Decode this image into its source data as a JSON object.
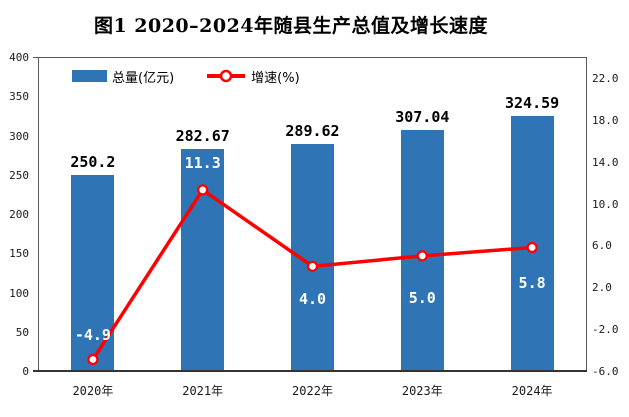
{
  "title": "图1  2020–2024年随县生产总值及增长速度",
  "legend": {
    "bar_label": "总量(亿元)",
    "line_label": "增速(%)"
  },
  "colors": {
    "bar": "#2F75B5",
    "line": "#FF0000",
    "marker_fill": "#FFFFFF",
    "axis_line": "#333333",
    "frame": "#595959"
  },
  "chart_data": {
    "type": "bar+line",
    "title": "图1  2020–2024年随县生产总值及增长速度",
    "categories": [
      "2020年",
      "2021年",
      "2022年",
      "2023年",
      "2024年"
    ],
    "series": [
      {
        "name": "总量(亿元)",
        "type": "bar",
        "axis": "left",
        "values": [
          250.2,
          282.67,
          289.62,
          307.04,
          324.59
        ],
        "labels": [
          "250.2",
          "282.67",
          "289.62",
          "307.04",
          "324.59"
        ],
        "color": "#2F75B5"
      },
      {
        "name": "增速(%)",
        "type": "line",
        "axis": "right",
        "values": [
          -4.9,
          11.3,
          4.0,
          5.0,
          5.8
        ],
        "labels": [
          "-4.9",
          "11.3",
          "4.0",
          "5.0",
          "5.8"
        ],
        "color": "#FF0000"
      }
    ],
    "left_axis": {
      "min": 0,
      "max": 400,
      "step": 50,
      "ticks": [
        "0",
        "50",
        "100",
        "150",
        "200",
        "250",
        "300",
        "350",
        "400"
      ]
    },
    "right_axis": {
      "min": -6,
      "max": 24,
      "step": 4,
      "ticks": [
        "-6.0",
        "-2.0",
        "2.0",
        "6.0",
        "10.0",
        "14.0",
        "18.0",
        "22.0"
      ]
    },
    "layout_hints": {
      "grid": false,
      "legend_position": "top-inside",
      "line_label_dy": [
        -24,
        -27,
        33,
        42,
        36
      ],
      "line_label_above": [
        true,
        true,
        false,
        false,
        false
      ]
    }
  }
}
